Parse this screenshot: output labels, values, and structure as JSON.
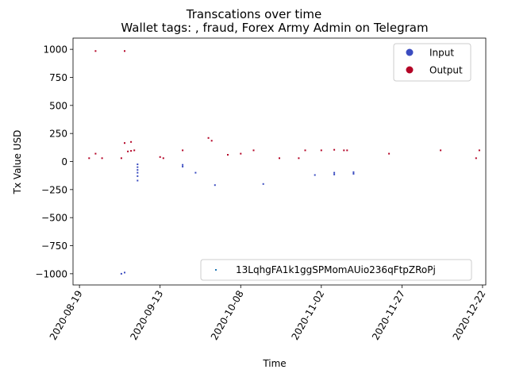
{
  "chart_data": {
    "type": "scatter",
    "title": "Transcations over time",
    "subtitle": "Wallet tags: , fraud, Forex Army Admin on Telegram",
    "xlabel": "Time",
    "ylabel": "Tx Value USD",
    "xlim": [
      "2020-08-17",
      "2020-12-23"
    ],
    "ylim": [
      -1100,
      1100
    ],
    "x_ticks": [
      "2020-08-19",
      "2020-09-13",
      "2020-10-08",
      "2020-11-02",
      "2020-11-27",
      "2020-12-22"
    ],
    "y_ticks": [
      -1000,
      -750,
      -500,
      -250,
      0,
      250,
      500,
      750,
      1000
    ],
    "legend_type": {
      "position": "top-right",
      "entries": [
        {
          "label": "Input",
          "color": "#3b4cc0"
        },
        {
          "label": "Output",
          "color": "#b40426"
        }
      ]
    },
    "legend_address": {
      "position": "lower-right",
      "label": "13LqhgFA1k1ggSPMomAUio236qFtpZRoPj",
      "color": "#1f77b4"
    },
    "series": [
      {
        "name": "Input",
        "color": "#3b4cc0",
        "points": [
          {
            "x": "2020-09-01",
            "y": -1000
          },
          {
            "x": "2020-09-02",
            "y": -990
          },
          {
            "x": "2020-09-06",
            "y": -25
          },
          {
            "x": "2020-09-06",
            "y": -50
          },
          {
            "x": "2020-09-06",
            "y": -75
          },
          {
            "x": "2020-09-06",
            "y": -100
          },
          {
            "x": "2020-09-06",
            "y": -130
          },
          {
            "x": "2020-09-06",
            "y": -170
          },
          {
            "x": "2020-09-20",
            "y": -30
          },
          {
            "x": "2020-09-20",
            "y": -45
          },
          {
            "x": "2020-09-24",
            "y": -100
          },
          {
            "x": "2020-09-30",
            "y": -210
          },
          {
            "x": "2020-10-15",
            "y": -200
          },
          {
            "x": "2020-10-31",
            "y": -120
          },
          {
            "x": "2020-11-06",
            "y": -100
          },
          {
            "x": "2020-11-06",
            "y": -115
          },
          {
            "x": "2020-11-12",
            "y": -95
          },
          {
            "x": "2020-11-12",
            "y": -110
          }
        ]
      },
      {
        "name": "Output",
        "color": "#b40426",
        "points": [
          {
            "x": "2020-08-22",
            "y": 30
          },
          {
            "x": "2020-08-24",
            "y": 985
          },
          {
            "x": "2020-08-24",
            "y": 70
          },
          {
            "x": "2020-08-26",
            "y": 30
          },
          {
            "x": "2020-09-01",
            "y": 30
          },
          {
            "x": "2020-09-02",
            "y": 985
          },
          {
            "x": "2020-09-02",
            "y": 165
          },
          {
            "x": "2020-09-03",
            "y": 90
          },
          {
            "x": "2020-09-04",
            "y": 175
          },
          {
            "x": "2020-09-04",
            "y": 95
          },
          {
            "x": "2020-09-05",
            "y": 100
          },
          {
            "x": "2020-09-13",
            "y": 40
          },
          {
            "x": "2020-09-14",
            "y": 30
          },
          {
            "x": "2020-09-20",
            "y": 100
          },
          {
            "x": "2020-09-28",
            "y": 210
          },
          {
            "x": "2020-09-29",
            "y": 185
          },
          {
            "x": "2020-10-04",
            "y": 60
          },
          {
            "x": "2020-10-08",
            "y": 70
          },
          {
            "x": "2020-10-12",
            "y": 100
          },
          {
            "x": "2020-10-20",
            "y": 30
          },
          {
            "x": "2020-10-26",
            "y": 30
          },
          {
            "x": "2020-10-28",
            "y": 100
          },
          {
            "x": "2020-11-02",
            "y": 100
          },
          {
            "x": "2020-11-06",
            "y": 105
          },
          {
            "x": "2020-11-09",
            "y": 100
          },
          {
            "x": "2020-11-10",
            "y": 100
          },
          {
            "x": "2020-11-23",
            "y": 70
          },
          {
            "x": "2020-12-09",
            "y": 100
          },
          {
            "x": "2020-12-20",
            "y": 30
          },
          {
            "x": "2020-12-21",
            "y": 100
          }
        ]
      }
    ]
  }
}
